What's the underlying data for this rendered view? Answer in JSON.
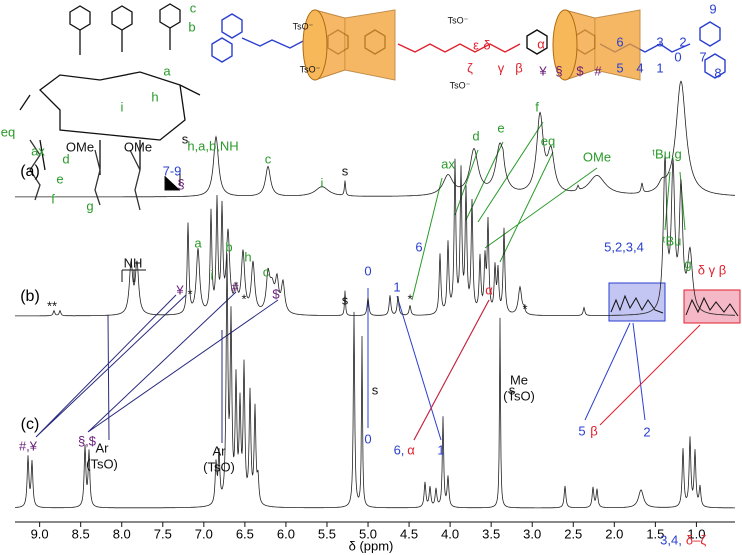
{
  "figure": {
    "xlabel": "δ (ppm)",
    "xlim": [
      9.3,
      0.53
    ],
    "xticks": [
      {
        "value": 9,
        "label": "9.0"
      },
      {
        "value": 8.5,
        "label": "8.5"
      },
      {
        "value": 8,
        "label": "8.0"
      },
      {
        "value": 7.5,
        "label": "7.5"
      },
      {
        "value": 7,
        "label": "7.0"
      },
      {
        "value": 6.5,
        "label": "6.5"
      },
      {
        "value": 6,
        "label": "6.0"
      },
      {
        "value": 5.5,
        "label": "5.5"
      },
      {
        "value": 5,
        "label": "5.0"
      },
      {
        "value": 4.5,
        "label": "4.5"
      },
      {
        "value": 4,
        "label": "4.0"
      },
      {
        "value": 3.5,
        "label": "3.5"
      },
      {
        "value": 3,
        "label": "3.0"
      },
      {
        "value": 2.5,
        "label": "2.5"
      },
      {
        "value": 2,
        "label": "2.0"
      },
      {
        "value": 1.5,
        "label": "1.5"
      },
      {
        "value": 1,
        "label": "1.0"
      }
    ],
    "traces": [
      "(a)",
      "(b)",
      "(c)"
    ],
    "colors": {
      "g": "#2a9a2a",
      "b": "#2a3fd0",
      "p": "#6a1d7a",
      "r": "#e0202c",
      "k": "#111111"
    },
    "labels": [
      {
        "text": "h,a,b,NH",
        "color": "g"
      },
      {
        "text": "c",
        "color": "g"
      },
      {
        "text": "i",
        "color": "g"
      },
      {
        "text": "s",
        "color": "k"
      },
      {
        "text": "ax",
        "color": "g"
      },
      {
        "text": "d",
        "color": "g"
      },
      {
        "text": "e",
        "color": "g"
      },
      {
        "text": "f",
        "color": "g"
      },
      {
        "text": "eq",
        "color": "g"
      },
      {
        "text": "OMe",
        "color": "g"
      },
      {
        "text": "ᵗBu,g",
        "color": "g"
      },
      {
        "text": "NH",
        "color": "k"
      },
      {
        "text": "7-9",
        "color": "b"
      },
      {
        "text": "§",
        "color": "p"
      },
      {
        "text": "a",
        "color": "g"
      },
      {
        "text": "i",
        "color": "g"
      },
      {
        "text": "b",
        "color": "g"
      },
      {
        "text": "h",
        "color": "g"
      },
      {
        "text": "c",
        "color": "g"
      },
      {
        "text": "¥",
        "color": "p"
      },
      {
        "text": "*",
        "color": "k"
      },
      {
        "text": "#",
        "color": "p"
      },
      {
        "text": "*",
        "color": "k"
      },
      {
        "text": "$",
        "color": "p"
      },
      {
        "text": "**",
        "color": "k"
      },
      {
        "text": "s",
        "color": "k"
      },
      {
        "text": "0",
        "color": "b"
      },
      {
        "text": "1",
        "color": "b"
      },
      {
        "text": "*",
        "color": "k"
      },
      {
        "text": "6",
        "color": "b"
      },
      {
        "text": "α",
        "color": "r"
      },
      {
        "text": "*",
        "color": "k"
      },
      {
        "text": "ᵗBu",
        "color": "g"
      },
      {
        "text": "g",
        "color": "g"
      },
      {
        "text": "5,2,3,4",
        "color": "b"
      },
      {
        "text": "δ γ β",
        "color": "r"
      },
      {
        "text": "#,¥",
        "color": "p"
      },
      {
        "text": "§,$",
        "color": "p"
      },
      {
        "text": "Ar",
        "color": "k"
      },
      {
        "text": "(TsO)",
        "color": "k"
      },
      {
        "text": "Ar",
        "color": "k"
      },
      {
        "text": "(TsO)",
        "color": "k"
      },
      {
        "text": "s",
        "color": "k"
      },
      {
        "text": "0",
        "color": "b"
      },
      {
        "text": "s",
        "color": "k"
      },
      {
        "text": "6,",
        "color": "b"
      },
      {
        "text": "α",
        "color": "r"
      },
      {
        "text": "1",
        "color": "b"
      },
      {
        "text": "Me",
        "color": "k"
      },
      {
        "text": "(TsO)",
        "color": "k"
      },
      {
        "text": "5",
        "color": "b"
      },
      {
        "text": "β",
        "color": "r"
      },
      {
        "text": "2",
        "color": "b"
      },
      {
        "text": "3,4,",
        "color": "b"
      },
      {
        "text": "δ–ζ",
        "color": "r"
      },
      {
        "text": "a",
        "color": "g"
      },
      {
        "text": "b",
        "color": "g"
      },
      {
        "text": "c",
        "color": "g"
      },
      {
        "text": "h",
        "color": "g"
      },
      {
        "text": "i",
        "color": "g"
      },
      {
        "text": "s",
        "color": "k"
      },
      {
        "text": "eq",
        "color": "g"
      },
      {
        "text": "ax",
        "color": "g"
      },
      {
        "text": "d",
        "color": "g"
      },
      {
        "text": "e",
        "color": "g"
      },
      {
        "text": "f",
        "color": "g"
      },
      {
        "text": "g",
        "color": "g"
      },
      {
        "text": "OMe",
        "color": "k"
      },
      {
        "text": "OMe",
        "color": "k"
      },
      {
        "text": "TsO⁻",
        "color": "k"
      },
      {
        "text": "TsO⁻",
        "color": "k"
      },
      {
        "text": "TsO⁻",
        "color": "k"
      },
      {
        "text": "TsO⁻",
        "color": "k"
      },
      {
        "text": "ε",
        "color": "r"
      },
      {
        "text": "δ",
        "color": "r"
      },
      {
        "text": "α",
        "color": "r"
      },
      {
        "text": "ζ",
        "color": "r"
      },
      {
        "text": "γ",
        "color": "r"
      },
      {
        "text": "β",
        "color": "r"
      },
      {
        "text": "¥",
        "color": "p"
      },
      {
        "text": "§",
        "color": "p"
      },
      {
        "text": "$",
        "color": "p"
      },
      {
        "text": "#",
        "color": "p"
      },
      {
        "text": "6",
        "color": "b"
      },
      {
        "text": "3",
        "color": "b"
      },
      {
        "text": "2",
        "color": "b"
      },
      {
        "text": "5",
        "color": "b"
      },
      {
        "text": "4",
        "color": "b"
      },
      {
        "text": "1",
        "color": "b"
      },
      {
        "text": "0",
        "color": "b"
      },
      {
        "text": "7",
        "color": "b"
      },
      {
        "text": "8",
        "color": "b"
      },
      {
        "text": "9",
        "color": "b"
      }
    ]
  }
}
